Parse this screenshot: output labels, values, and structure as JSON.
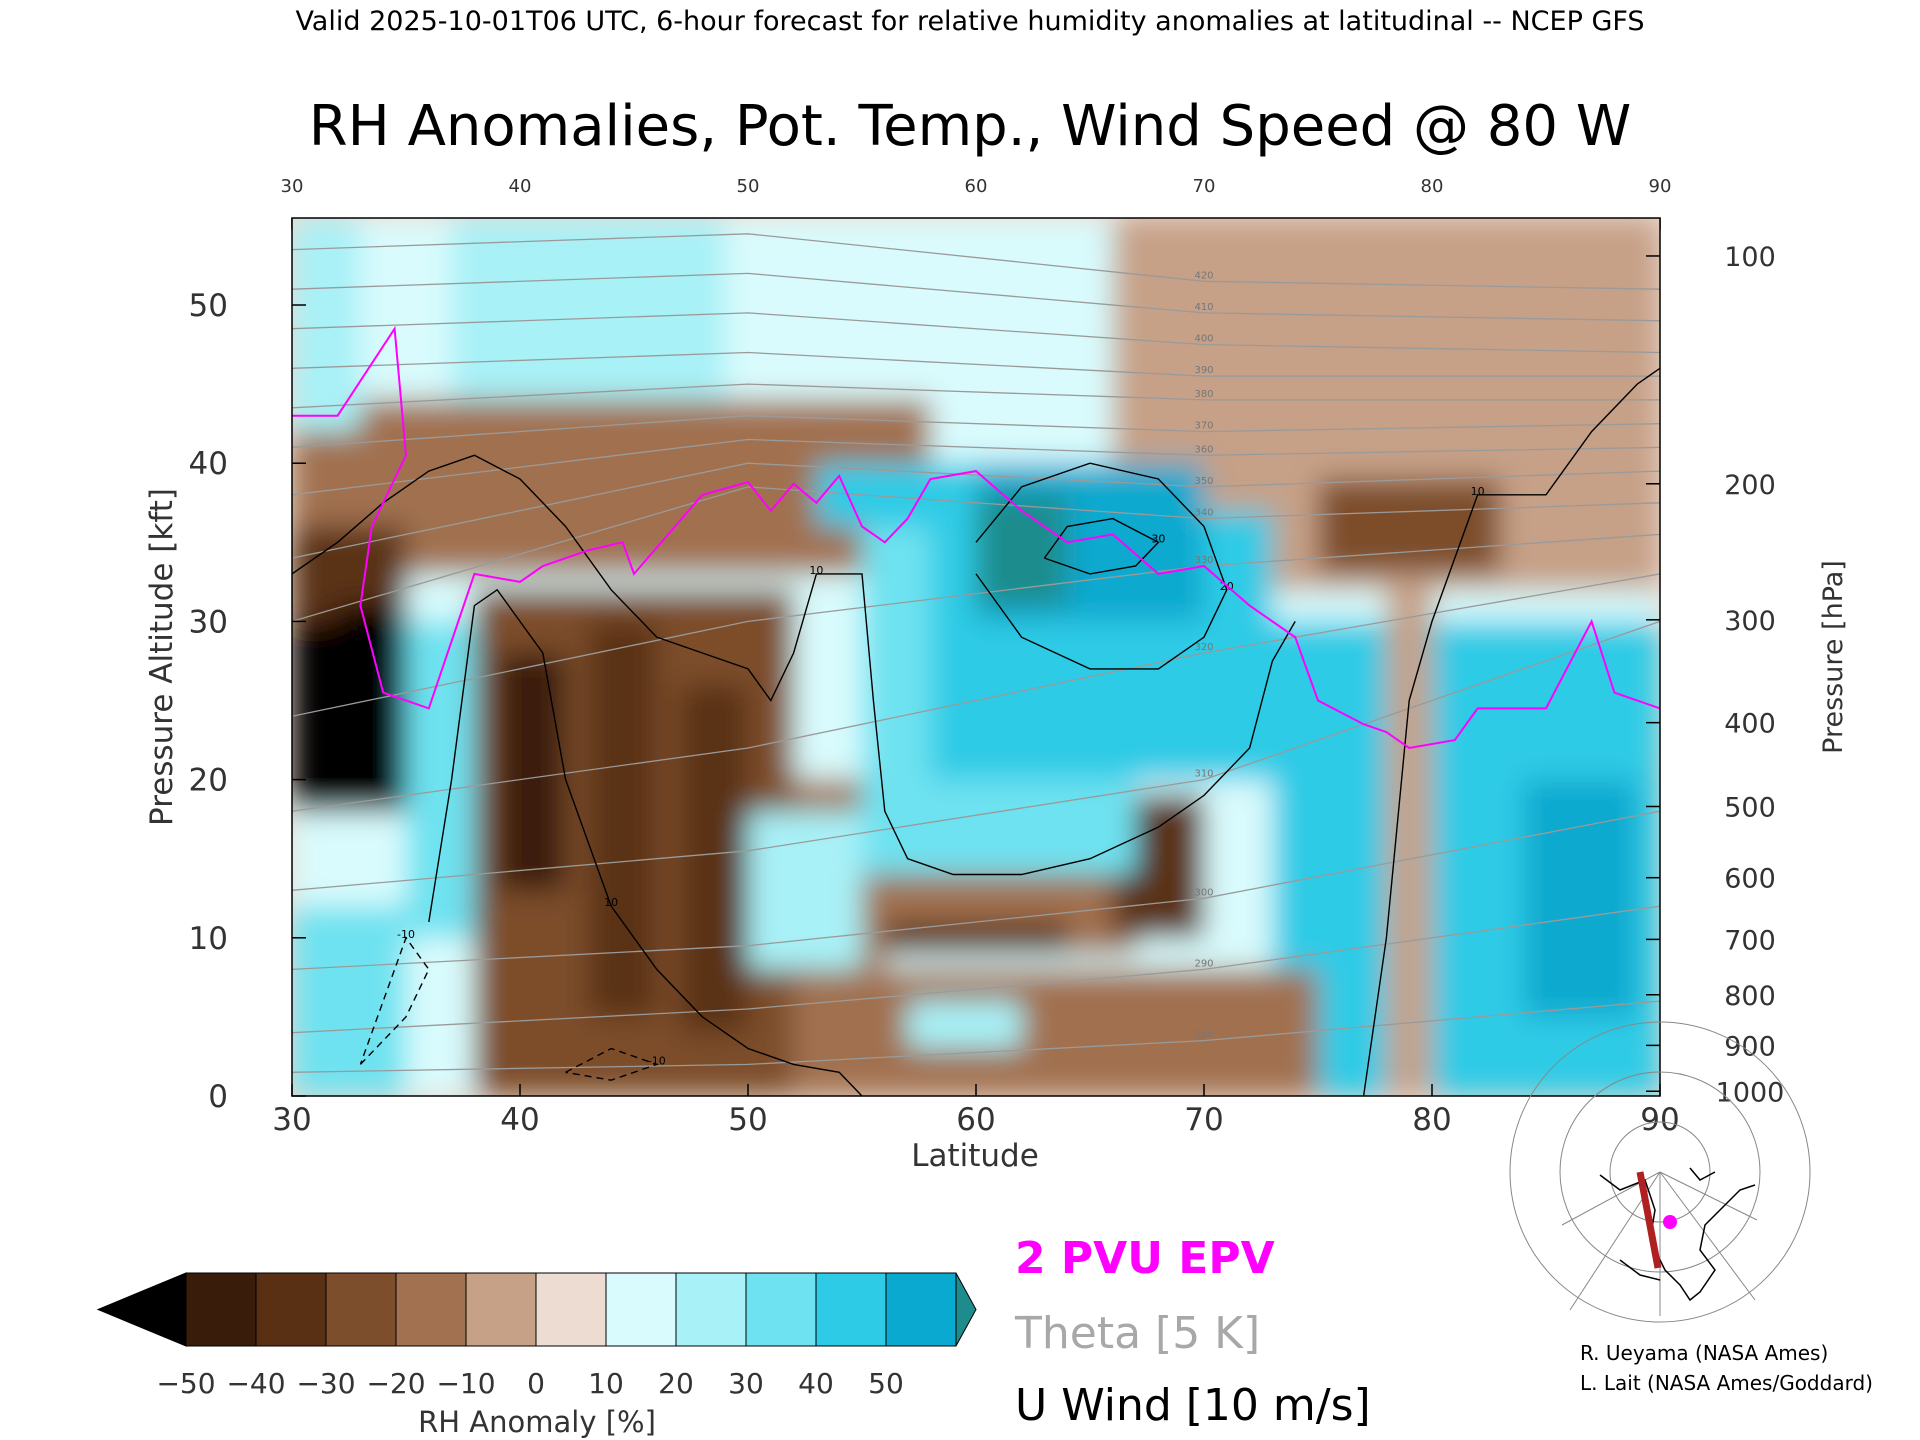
{
  "header": {
    "valid_line": "Valid 2025-10-01T06 UTC, 6-hour forecast for relative humidity anomalies at latitudinal -- NCEP GFS"
  },
  "chart_data": {
    "type": "heatmap",
    "title": "RH Anomalies, Pot. Temp., Wind Speed @ 80 W",
    "xlabel": "Latitude",
    "ylabel_left": "Pressure Altitude [kft]",
    "ylabel_right": "Pressure [hPa]",
    "xlim": [
      30,
      90
    ],
    "ylim": [
      0,
      55.5
    ],
    "x_ticks": [
      "30",
      "40",
      "50",
      "60",
      "70",
      "80",
      "90"
    ],
    "x_ticks_top": [
      "30",
      "40",
      "50",
      "60",
      "70",
      "80",
      "90"
    ],
    "y_ticks_left": [
      "0",
      "10",
      "20",
      "30",
      "40",
      "50"
    ],
    "y_ticks_left_values": [
      0,
      10,
      20,
      30,
      40,
      50
    ],
    "y_ticks_right": [
      {
        "label": "100",
        "kft": 53.1
      },
      {
        "label": "200",
        "kft": 38.7
      },
      {
        "label": "300",
        "kft": 30.1
      },
      {
        "label": "400",
        "kft": 23.6
      },
      {
        "label": "500",
        "kft": 18.3
      },
      {
        "label": "600",
        "kft": 13.8
      },
      {
        "label": "700",
        "kft": 9.9
      },
      {
        "label": "800",
        "kft": 6.4
      },
      {
        "label": "900",
        "kft": 3.2
      },
      {
        "label": "1000",
        "kft": 0.3
      }
    ],
    "colorbar": {
      "label": "RH Anomaly [%]",
      "tick_labels": [
        "−50",
        "−40",
        "−30",
        "−20",
        "−10",
        "0",
        "10",
        "20",
        "30",
        "40",
        "50"
      ],
      "colors": [
        "#3a1c0a",
        "#5a3015",
        "#7d4e2c",
        "#a17150",
        "#c6a087",
        "#ecdcd2",
        "#d9fbfd",
        "#a8f1f7",
        "#6ee2f0",
        "#2ecbe6",
        "#0aa9cf"
      ],
      "under_color": "#000000",
      "over_color": "#1e8c8c"
    },
    "legend": [
      {
        "label": "2 PVU EPV",
        "color": "#ff00ff"
      },
      {
        "label": "Theta [5 K]",
        "color": "#a8a8a8"
      },
      {
        "label": "U Wind [10 m/s]",
        "color": "#000000"
      }
    ],
    "credits": [
      "R. Ueyama (NASA Ames)",
      "L. Lait (NASA Ames/Goddard)"
    ],
    "rh_regions": [
      {
        "x": [
          30,
          90
        ],
        "y": [
          0,
          55.5
        ],
        "value": 2
      },
      {
        "x": [
          30,
          90
        ],
        "y": [
          38,
          55.5
        ],
        "value": 8
      },
      {
        "x": [
          66,
          90
        ],
        "y": [
          32,
          55.5
        ],
        "value": -8
      },
      {
        "x": [
          30,
          58
        ],
        "y": [
          33,
          44
        ],
        "value": -14
      },
      {
        "x": [
          75,
          83
        ],
        "y": [
          33,
          39
        ],
        "value": -28
      },
      {
        "x": [
          30,
          33
        ],
        "y": [
          42,
          55.5
        ],
        "value": 18
      },
      {
        "x": [
          37,
          49
        ],
        "y": [
          44,
          55.5
        ],
        "value": 15
      },
      {
        "x": [
          30,
          35
        ],
        "y": [
          18,
          36
        ],
        "value": -35
      },
      {
        "x": [
          30,
          35
        ],
        "y": [
          18,
          30
        ],
        "value": -55
      },
      {
        "x": [
          32,
          35
        ],
        "y": [
          28,
          31
        ],
        "value": -55
      },
      {
        "x": [
          35,
          38
        ],
        "y": [
          10,
          30
        ],
        "value": 26
      },
      {
        "x": [
          30,
          35
        ],
        "y": [
          0,
          12
        ],
        "value": 22
      },
      {
        "x": [
          38,
          52
        ],
        "y": [
          0,
          32
        ],
        "value": -27
      },
      {
        "x": [
          39,
          42
        ],
        "y": [
          13,
          28
        ],
        "value": -42
      },
      {
        "x": [
          43,
          46
        ],
        "y": [
          5,
          30
        ],
        "value": -40
      },
      {
        "x": [
          47,
          50
        ],
        "y": [
          4,
          26
        ],
        "value": -38
      },
      {
        "x": [
          52,
          56
        ],
        "y": [
          0,
          20
        ],
        "value": -18
      },
      {
        "x": [
          50,
          55
        ],
        "y": [
          8,
          18
        ],
        "value": 16
      },
      {
        "x": [
          56,
          67
        ],
        "y": [
          9,
          14
        ],
        "value": -12
      },
      {
        "x": [
          56,
          64
        ],
        "y": [
          9,
          11
        ],
        "value": -38
      },
      {
        "x": [
          66,
          70
        ],
        "y": [
          10,
          19
        ],
        "value": -32
      },
      {
        "x": [
          55,
          67
        ],
        "y": [
          14,
          36
        ],
        "value": 27
      },
      {
        "x": [
          58,
          73
        ],
        "y": [
          20,
          37
        ],
        "value": 32
      },
      {
        "x": [
          60,
          70
        ],
        "y": [
          30,
          40
        ],
        "value": 42
      },
      {
        "x": [
          60,
          64
        ],
        "y": [
          31,
          38
        ],
        "value": 55
      },
      {
        "x": [
          53,
          60
        ],
        "y": [
          36,
          40
        ],
        "value": 30
      },
      {
        "x": [
          73,
          78
        ],
        "y": [
          0,
          30
        ],
        "value": 30
      },
      {
        "x": [
          78,
          80
        ],
        "y": [
          0,
          32
        ],
        "value": -10
      },
      {
        "x": [
          80,
          90
        ],
        "y": [
          0,
          30
        ],
        "value": 33
      },
      {
        "x": [
          84,
          89
        ],
        "y": [
          5,
          20
        ],
        "value": 40
      },
      {
        "x": [
          55,
          75
        ],
        "y": [
          0,
          8
        ],
        "value": -14
      },
      {
        "x": [
          57,
          62
        ],
        "y": [
          3,
          6
        ],
        "value": 15
      }
    ],
    "theta_lines": [
      {
        "label": "280",
        "pts": [
          [
            30,
            1.5
          ],
          [
            50,
            2.0
          ],
          [
            70,
            3.5
          ],
          [
            90,
            6.0
          ]
        ]
      },
      {
        "label": "290",
        "pts": [
          [
            30,
            4.0
          ],
          [
            50,
            5.5
          ],
          [
            70,
            8.0
          ],
          [
            90,
            12.0
          ]
        ]
      },
      {
        "label": "300",
        "pts": [
          [
            30,
            8.0
          ],
          [
            50,
            9.5
          ],
          [
            70,
            12.5
          ],
          [
            90,
            18.0
          ]
        ]
      },
      {
        "label": "310",
        "pts": [
          [
            30,
            13.0
          ],
          [
            50,
            15.5
          ],
          [
            70,
            20.0
          ],
          [
            90,
            30.0
          ]
        ]
      },
      {
        "label": "320",
        "pts": [
          [
            30,
            18.0
          ],
          [
            50,
            22.0
          ],
          [
            70,
            28.0
          ],
          [
            90,
            33.0
          ]
        ]
      },
      {
        "label": "330",
        "pts": [
          [
            30,
            24.0
          ],
          [
            50,
            30.0
          ],
          [
            70,
            33.5
          ],
          [
            90,
            35.5
          ]
        ]
      },
      {
        "label": "340",
        "pts": [
          [
            30,
            30.0
          ],
          [
            50,
            38.5
          ],
          [
            70,
            36.5
          ],
          [
            90,
            37.5
          ]
        ]
      },
      {
        "label": "350",
        "pts": [
          [
            30,
            34.0
          ],
          [
            50,
            40.0
          ],
          [
            70,
            38.5
          ],
          [
            90,
            39.5
          ]
        ]
      },
      {
        "label": "360",
        "pts": [
          [
            30,
            38.0
          ],
          [
            50,
            41.5
          ],
          [
            70,
            40.5
          ],
          [
            90,
            41.0
          ]
        ]
      },
      {
        "label": "370",
        "pts": [
          [
            30,
            41.0
          ],
          [
            50,
            43.0
          ],
          [
            70,
            42.0
          ],
          [
            90,
            42.5
          ]
        ]
      },
      {
        "label": "380",
        "pts": [
          [
            30,
            43.5
          ],
          [
            50,
            45.0
          ],
          [
            70,
            44.0
          ],
          [
            90,
            44.0
          ]
        ]
      },
      {
        "label": "390",
        "pts": [
          [
            30,
            46.0
          ],
          [
            50,
            47.0
          ],
          [
            70,
            45.5
          ],
          [
            90,
            45.5
          ]
        ]
      },
      {
        "label": "400",
        "pts": [
          [
            30,
            48.5
          ],
          [
            50,
            49.5
          ],
          [
            70,
            47.5
          ],
          [
            90,
            47.0
          ]
        ]
      },
      {
        "label": "410",
        "pts": [
          [
            30,
            51.0
          ],
          [
            50,
            52.0
          ],
          [
            70,
            49.5
          ],
          [
            90,
            49.0
          ]
        ]
      },
      {
        "label": "420",
        "pts": [
          [
            30,
            53.5
          ],
          [
            50,
            54.5
          ],
          [
            70,
            51.5
          ],
          [
            90,
            51.0
          ]
        ]
      }
    ],
    "epv_line": [
      [
        30,
        43
      ],
      [
        32,
        43
      ],
      [
        34.5,
        48.5
      ],
      [
        35,
        40.5
      ],
      [
        33.5,
        36
      ],
      [
        33,
        31
      ],
      [
        34,
        25.5
      ],
      [
        36,
        24.5
      ],
      [
        38,
        33
      ],
      [
        40,
        32.5
      ],
      [
        41,
        33.5
      ],
      [
        43,
        34.5
      ],
      [
        44.5,
        35
      ],
      [
        45,
        33
      ],
      [
        46.5,
        35.5
      ],
      [
        48,
        38
      ],
      [
        50,
        38.8
      ],
      [
        51,
        37
      ],
      [
        52,
        38.7
      ],
      [
        53,
        37.5
      ],
      [
        54,
        39.2
      ],
      [
        55,
        36
      ],
      [
        56,
        35
      ],
      [
        57,
        36.5
      ],
      [
        58,
        39
      ],
      [
        60,
        39.5
      ],
      [
        62,
        37
      ],
      [
        64,
        35
      ],
      [
        66,
        35.5
      ],
      [
        68,
        33
      ],
      [
        70,
        33.5
      ],
      [
        72,
        31
      ],
      [
        74,
        29
      ],
      [
        75,
        25
      ],
      [
        77,
        23.5
      ],
      [
        78,
        23
      ],
      [
        79,
        22
      ],
      [
        81,
        22.5
      ],
      [
        82,
        24.5
      ],
      [
        85,
        24.5
      ],
      [
        87,
        30
      ],
      [
        88,
        25.5
      ],
      [
        90,
        24.5
      ]
    ],
    "u_wind_contours": [
      {
        "label": "10",
        "pts": [
          [
            30,
            33
          ],
          [
            32,
            35
          ],
          [
            34,
            37.5
          ],
          [
            36,
            39.5
          ],
          [
            38,
            40.5
          ],
          [
            40,
            39
          ],
          [
            42,
            36
          ],
          [
            44,
            32
          ],
          [
            46,
            29
          ],
          [
            48,
            28
          ],
          [
            50,
            27
          ],
          [
            51,
            25
          ],
          [
            52,
            28
          ],
          [
            53,
            33
          ],
          [
            55,
            33
          ],
          [
            55.5,
            25
          ],
          [
            56,
            18
          ],
          [
            57,
            15
          ],
          [
            59,
            14
          ],
          [
            62,
            14
          ],
          [
            65,
            15
          ],
          [
            68,
            17
          ],
          [
            70,
            19
          ],
          [
            72,
            22
          ],
          [
            73,
            27.5
          ],
          [
            74,
            30
          ]
        ]
      },
      {
        "label": "10",
        "pts": [
          [
            36,
            11
          ],
          [
            37,
            20
          ],
          [
            38,
            31
          ],
          [
            39,
            32
          ],
          [
            41,
            28
          ],
          [
            42,
            20
          ],
          [
            44,
            12
          ],
          [
            46,
            8
          ],
          [
            48,
            5
          ],
          [
            50,
            3
          ],
          [
            52,
            2
          ],
          [
            54,
            1.5
          ],
          [
            55,
            0
          ]
        ]
      },
      {
        "label": "20",
        "pts": [
          [
            60,
            33
          ],
          [
            62,
            29
          ],
          [
            65,
            27
          ],
          [
            68,
            27
          ],
          [
            70,
            29
          ],
          [
            71,
            32
          ],
          [
            70,
            36
          ],
          [
            68,
            39
          ],
          [
            65,
            40
          ],
          [
            62,
            38.5
          ],
          [
            60,
            35
          ]
        ]
      },
      {
        "label": "30",
        "pts": [
          [
            63,
            34
          ],
          [
            65,
            33
          ],
          [
            67,
            33.5
          ],
          [
            68,
            35
          ],
          [
            66,
            36.5
          ],
          [
            64,
            36
          ],
          [
            63,
            34
          ]
        ]
      },
      {
        "label": "10",
        "pts": [
          [
            77,
            0
          ],
          [
            78,
            10
          ],
          [
            79,
            25
          ],
          [
            80,
            30
          ],
          [
            82,
            38
          ],
          [
            85,
            38
          ],
          [
            87,
            42
          ],
          [
            89,
            45
          ],
          [
            90,
            46
          ]
        ]
      },
      {
        "label": "-10",
        "pts": [
          [
            33,
            2
          ],
          [
            35,
            5
          ],
          [
            36,
            8
          ],
          [
            35,
            10
          ],
          [
            34,
            6
          ],
          [
            33,
            2
          ]
        ]
      },
      {
        "label": "-10",
        "pts": [
          [
            42,
            1.5
          ],
          [
            44,
            3
          ],
          [
            46,
            2
          ],
          [
            44,
            1
          ],
          [
            42,
            1.5
          ]
        ]
      }
    ]
  }
}
